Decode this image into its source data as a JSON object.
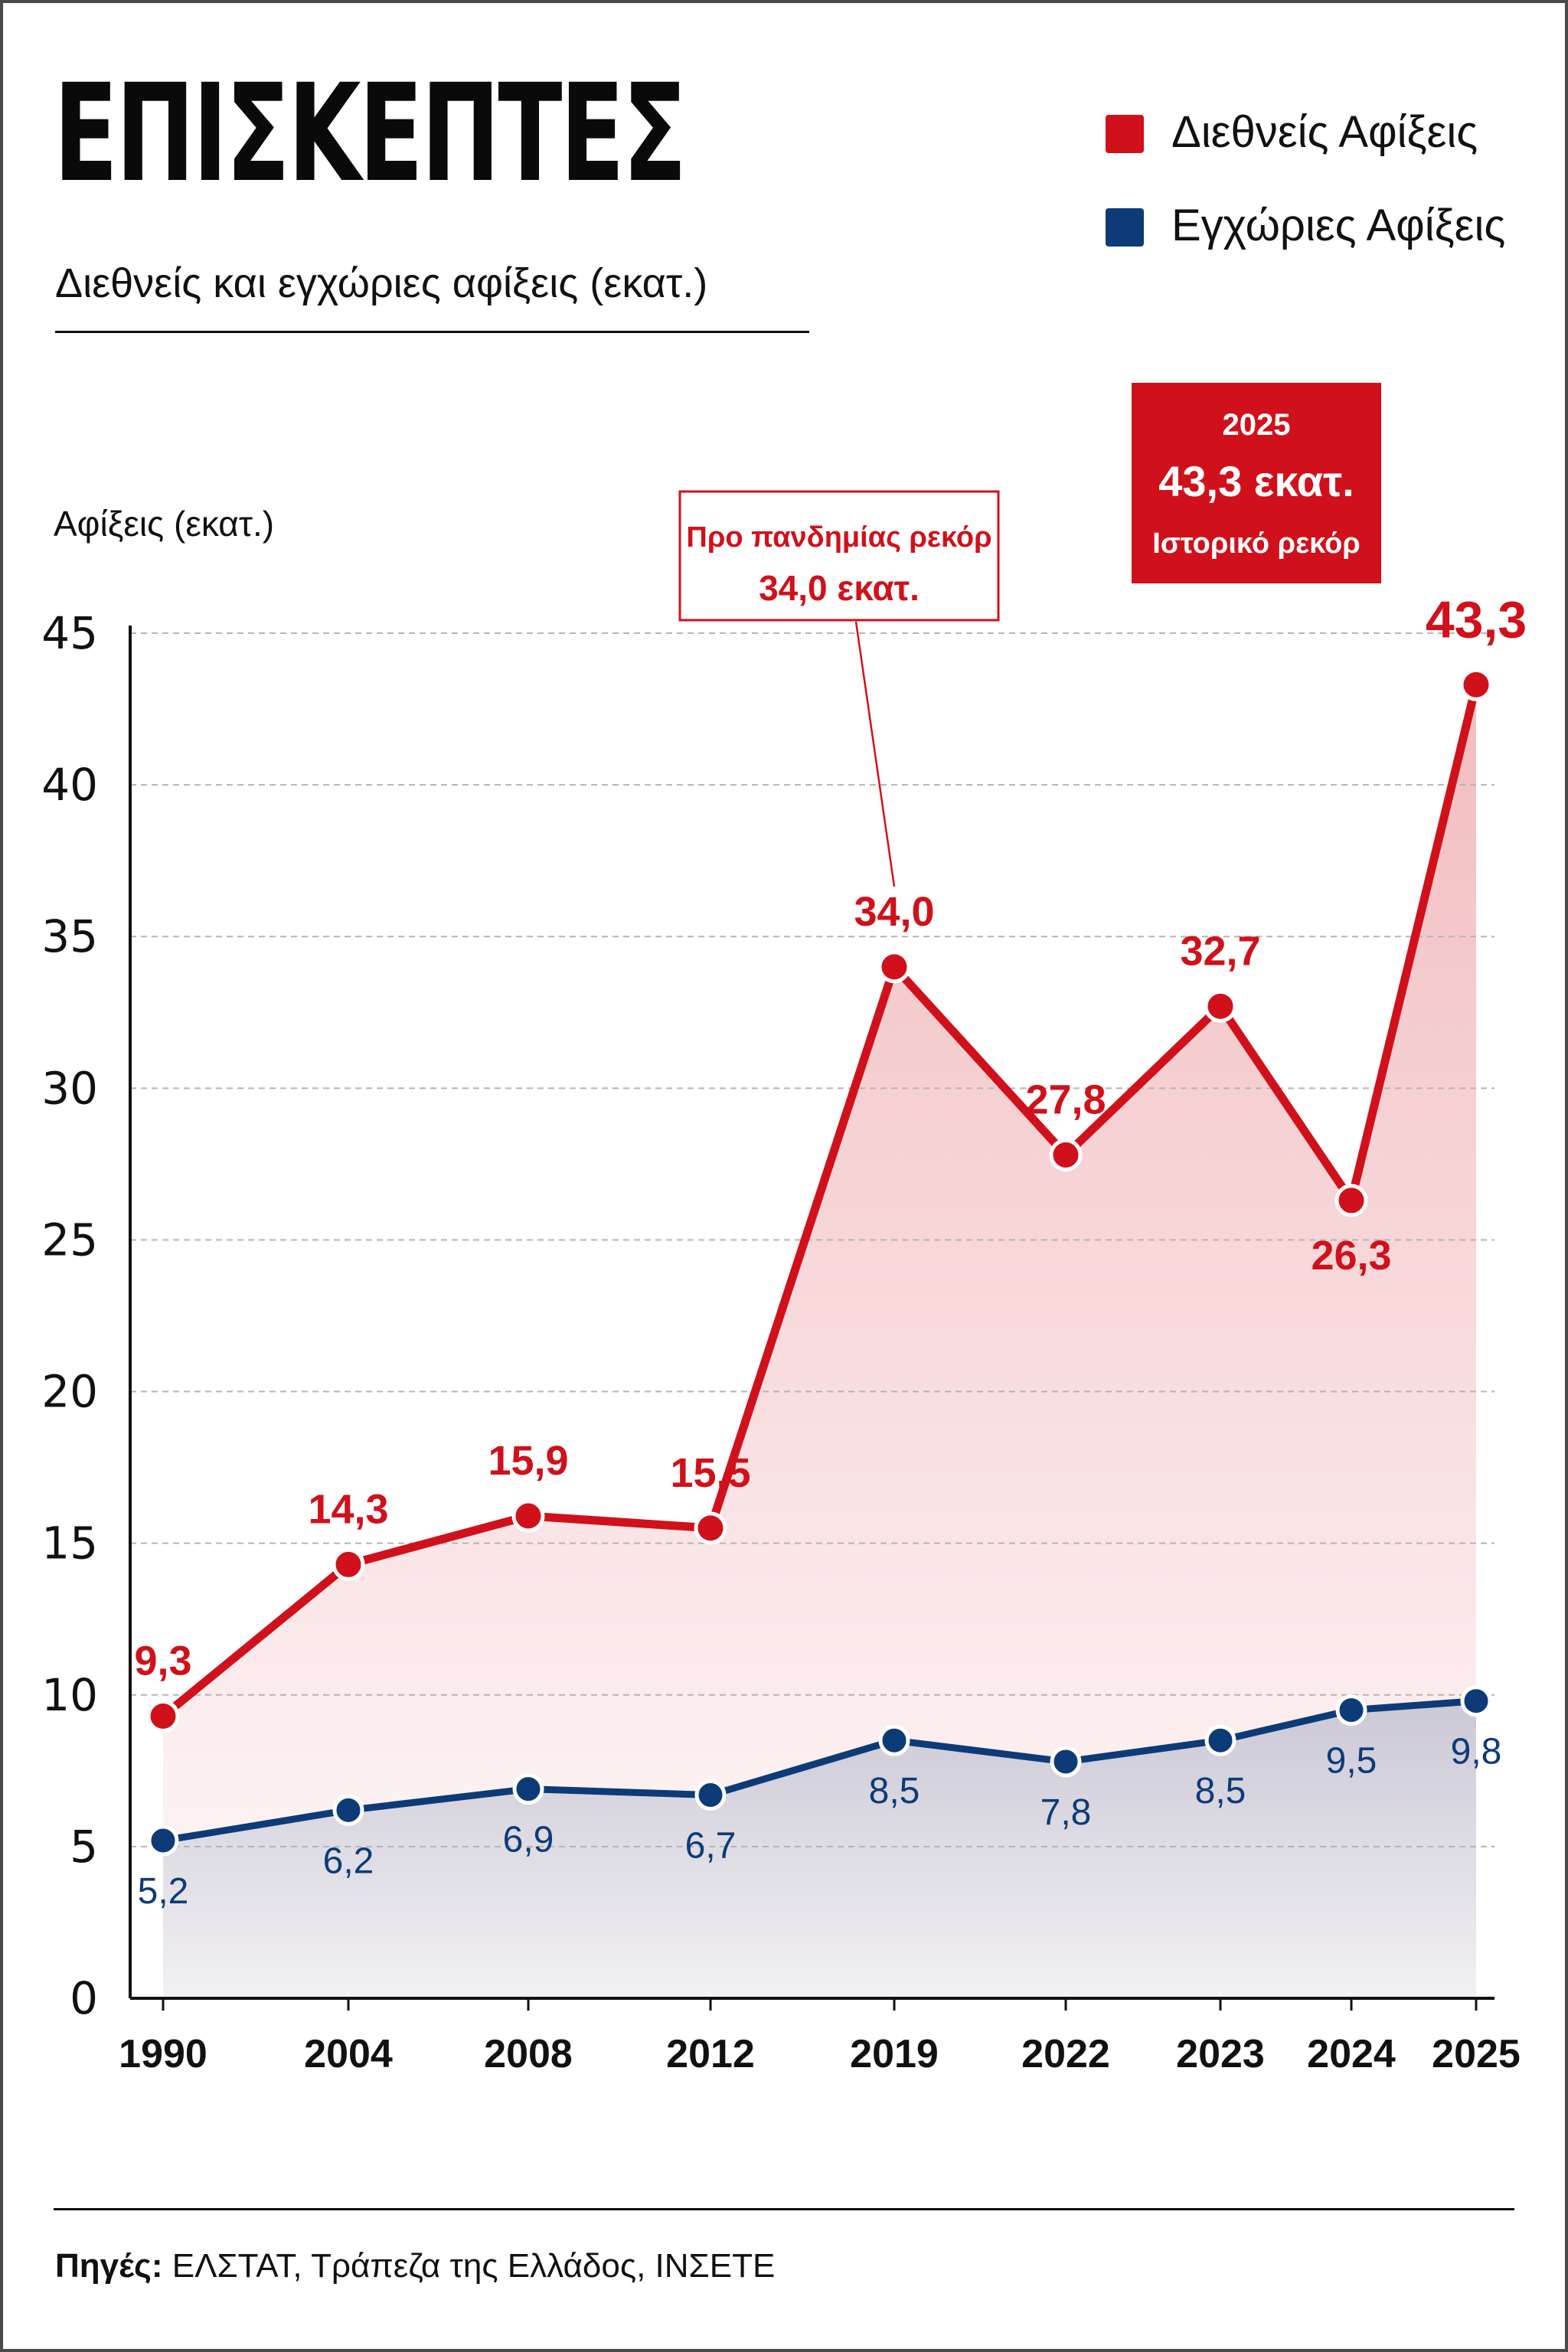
{
  "header": {
    "title": "ΕΠΙΣΚΕΠΤΕΣ",
    "subtitle": "Διεθνείς και εγχώριες αφίξεις (εκατ.)"
  },
  "colors": {
    "international": "#d0111b",
    "domestic": "#0d3b78",
    "grid": "#b5b5b5",
    "axis": "#111111",
    "annotation_box": "#d0111b"
  },
  "footer": {
    "source_label": "Πηγές:",
    "source_text": " ΕΛΣΤΑΤ, Τράπεζα της Ελλάδος, ΙΝΣΕΤΕ"
  },
  "chart_data": {
    "type": "line",
    "title": "ΕΠΙΣΚΕΠΤΕΣ",
    "subtitle": "Διεθνείς και εγχώριες αφίξεις (εκατ.)",
    "xlabel": "",
    "ylabel": "Αφίξεις (εκατ.)",
    "categories": [
      "1990",
      "2004",
      "2008",
      "2012",
      "2019",
      "2022",
      "2023",
      "2024",
      "2025"
    ],
    "series": [
      {
        "name": "Διεθνείς Αφίξεις",
        "values": [
          9.3,
          14.3,
          15.9,
          15.5,
          34.0,
          27.8,
          32.7,
          26.3,
          43.3
        ],
        "labels": [
          "9,3",
          "14,3",
          "15,9",
          "15,5",
          "34,0",
          "27,8",
          "32,7",
          "26,3",
          "43,3"
        ]
      },
      {
        "name": "Εγχώριες Αφίξεις",
        "values": [
          5.2,
          6.2,
          6.9,
          6.7,
          8.5,
          7.8,
          8.5,
          9.5,
          9.8
        ],
        "labels": [
          "5,2",
          "6,2",
          "6,9",
          "6,7",
          "8,5",
          "7,8",
          "8,5",
          "9,5",
          "9,8"
        ]
      }
    ],
    "ylim": [
      0,
      45
    ],
    "yticks": [
      0,
      5,
      10,
      15,
      20,
      25,
      30,
      35,
      40,
      45
    ],
    "grid": true,
    "legend_position": "top-right",
    "annotations": [
      {
        "style": "outline",
        "lines": [
          "Προ πανδημίας ρεκόρ",
          "34,0 εκατ."
        ],
        "category": "2019",
        "value": 34.0
      },
      {
        "style": "filled",
        "lines": [
          "2025",
          "43,3 εκατ.",
          "Ιστορικό ρεκόρ"
        ],
        "category": "2025",
        "value": 43.3
      }
    ]
  }
}
